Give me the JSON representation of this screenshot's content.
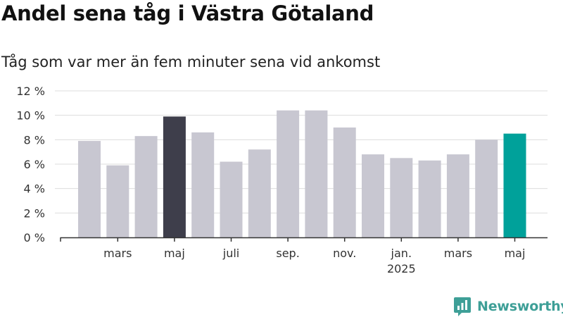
{
  "page": {
    "title": "Andel sena tåg i Västra Götaland",
    "subtitle": "Tåg som var mer än fem minuter sena vid ankomst",
    "brand": "Newsworthy"
  },
  "colors": {
    "bar_default": "#c8c7d1",
    "bar_highlight_dark": "#3e3e4b",
    "bar_highlight_accent": "#00a19a",
    "grid": "#dddddd",
    "axis": "#333333",
    "brand": "#3e9f97"
  },
  "chart_data": {
    "type": "bar",
    "x": [
      "2024-02",
      "2024-03",
      "2024-04",
      "2024-05",
      "2024-06",
      "2024-07",
      "2024-08",
      "2024-09",
      "2024-10",
      "2024-11",
      "2024-12",
      "2025-01",
      "2025-02",
      "2025-03",
      "2025-04",
      "2025-05"
    ],
    "values": [
      7.9,
      5.9,
      8.3,
      9.9,
      8.6,
      6.2,
      7.2,
      10.4,
      10.4,
      9.0,
      6.8,
      6.5,
      6.3,
      6.8,
      8.0,
      8.5
    ],
    "highlight": {
      "2024-05": "bar_highlight_dark",
      "2025-05": "bar_highlight_accent"
    },
    "ylim": [
      0,
      12
    ],
    "yticks": [
      {
        "value": 0,
        "label": "0 %"
      },
      {
        "value": 2,
        "label": "2 %"
      },
      {
        "value": 4,
        "label": "4 %"
      },
      {
        "value": 6,
        "label": "6 %"
      },
      {
        "value": 8,
        "label": "8 %"
      },
      {
        "value": 10,
        "label": "10 %"
      },
      {
        "value": 12,
        "label": "12 %"
      }
    ],
    "xticks": [
      {
        "at": "2024-03",
        "label": "mars"
      },
      {
        "at": "2024-05",
        "label": "maj"
      },
      {
        "at": "2024-07",
        "label": "juli"
      },
      {
        "at": "2024-09",
        "label": "sep."
      },
      {
        "at": "2024-11",
        "label": "nov."
      },
      {
        "at": "2025-01",
        "label": "jan.",
        "sublabel": "2025"
      },
      {
        "at": "2025-03",
        "label": "mars"
      },
      {
        "at": "2025-05",
        "label": "maj"
      }
    ],
    "grid": true,
    "legend": "none"
  }
}
